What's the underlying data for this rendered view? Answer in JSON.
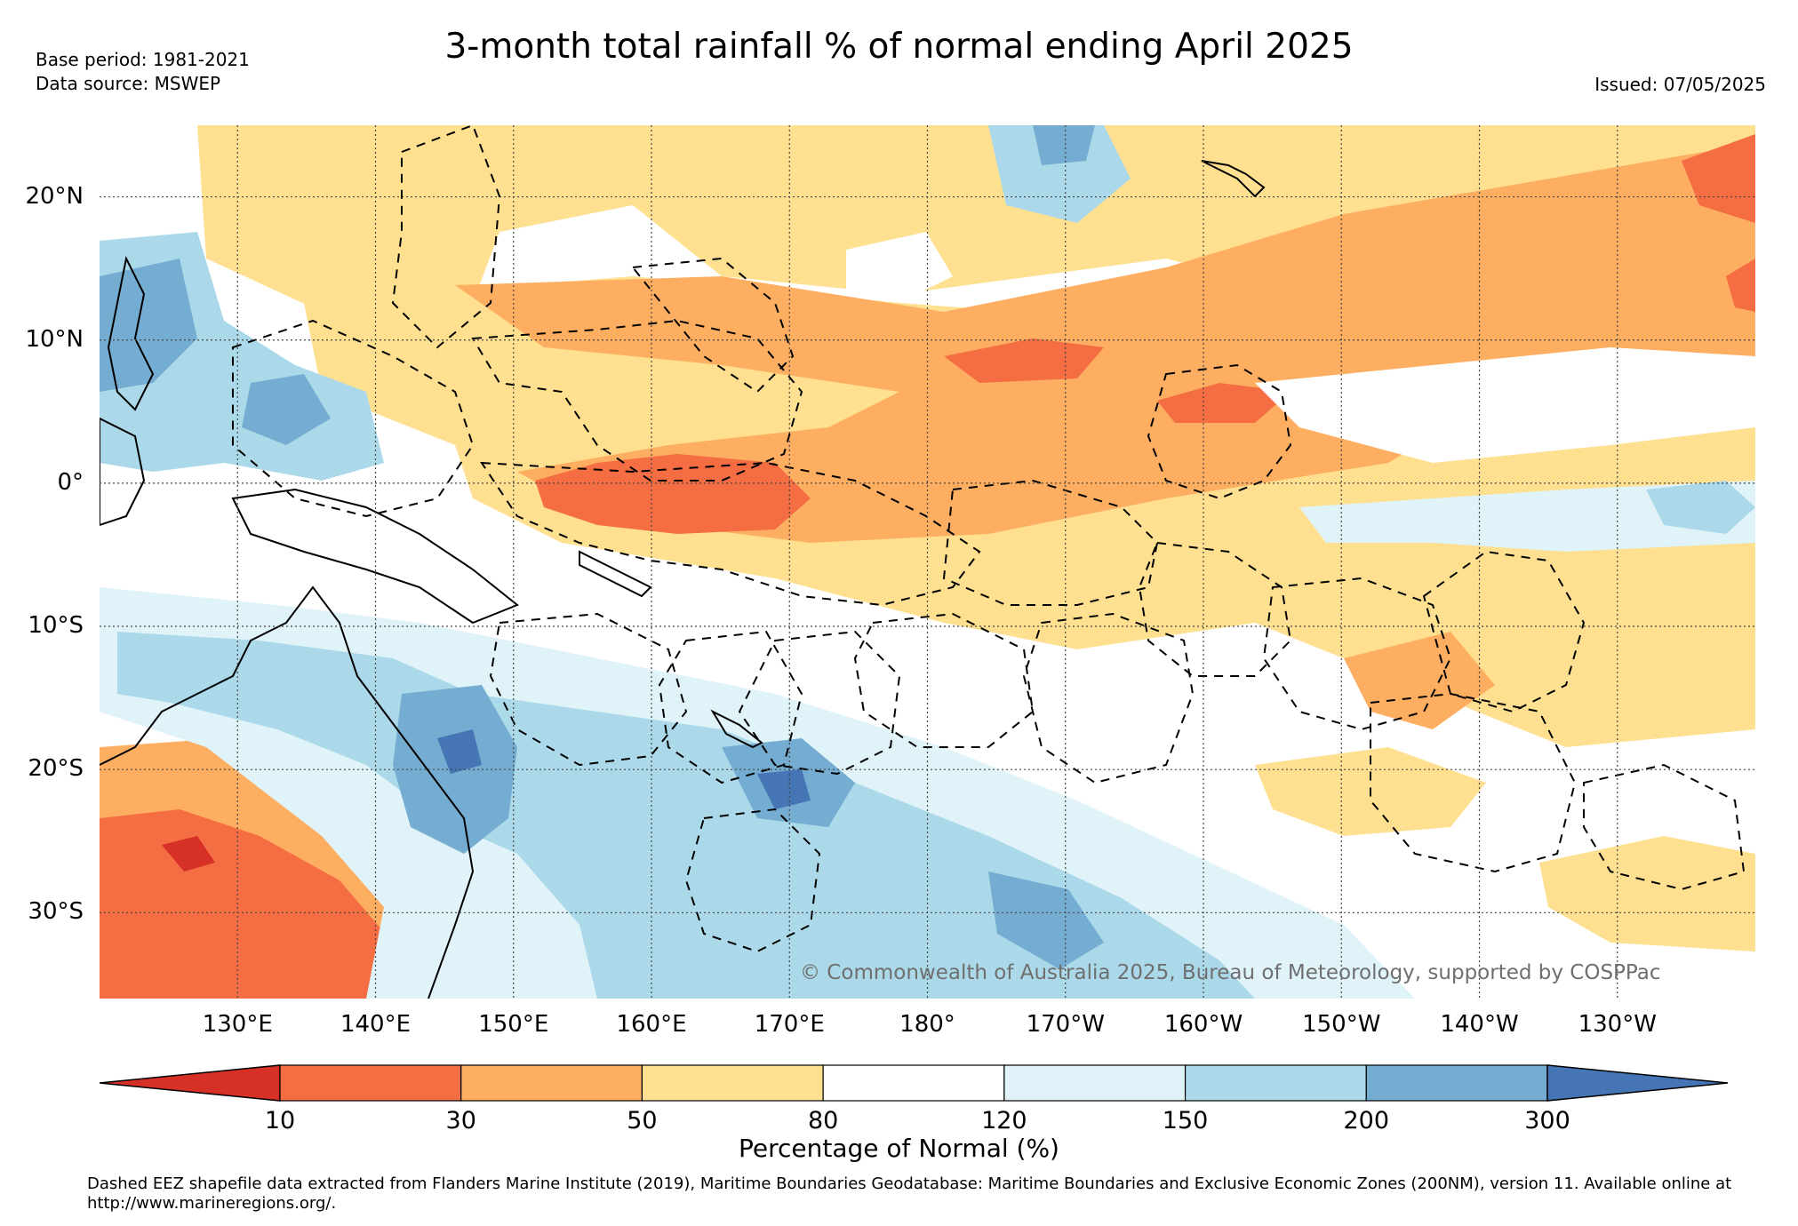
{
  "title": "3-month total rainfall % of normal ending April 2025",
  "meta": {
    "base_period": "Base period: 1981-2021",
    "data_source": "Data source: MSWEP",
    "issued": "Issued: 07/05/2025"
  },
  "map": {
    "lat_labels": [
      "20°N",
      "10°N",
      "0°",
      "10°S",
      "20°S",
      "30°S"
    ],
    "lat_values": [
      20,
      10,
      0,
      -10,
      -20,
      -30
    ],
    "lon_labels": [
      "130°E",
      "140°E",
      "150°E",
      "160°E",
      "170°E",
      "180°",
      "170°W",
      "160°W",
      "150°W",
      "140°W",
      "130°W"
    ],
    "lon_values": [
      130,
      140,
      150,
      160,
      170,
      180,
      190,
      200,
      210,
      220,
      230
    ],
    "extent": {
      "lon_min": 120,
      "lon_max": 240,
      "lat_min": -36,
      "lat_max": 25
    },
    "copyright": "© Commonwealth of Australia 2025, Bureau of Meteorology, supported by COSPPac"
  },
  "colorbar": {
    "title": "Percentage of Normal (%)",
    "ticks": [
      "10",
      "30",
      "50",
      "80",
      "120",
      "150",
      "200",
      "300"
    ],
    "colors": [
      "#d73027",
      "#f46d43",
      "#fdae61",
      "#fee090",
      "#ffffff",
      "#e0f3f8",
      "#abd9e9",
      "#74add1",
      "#4575b4"
    ],
    "palette": {
      "dark_red": "#d73027",
      "red": "#f46d43",
      "orange": "#fdae61",
      "yellow": "#fee090",
      "white": "#ffffff",
      "pale_blue": "#e0f3f8",
      "light_blue": "#abd9e9",
      "blue": "#74add1",
      "dark_blue": "#4575b4"
    }
  },
  "footnote": "Dashed EEZ shapefile data extracted from Flanders Marine Institute (2019), Maritime Boundaries Geodatabase: Maritime Boundaries and Exclusive Economic Zones (200NM), version 11. Available online at http://www.marineregions.org/."
}
